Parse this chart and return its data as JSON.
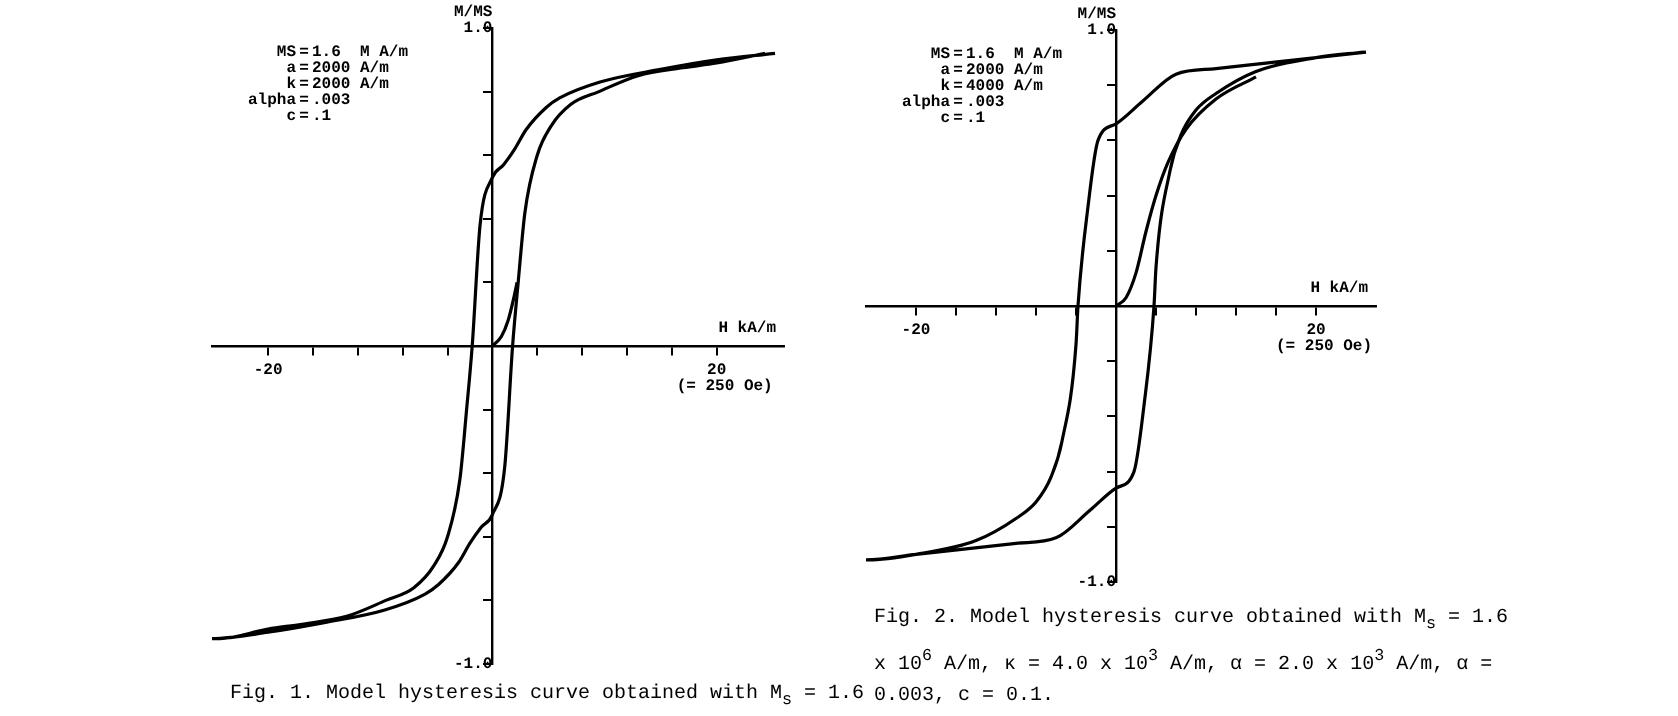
{
  "chart_data": [
    {
      "type": "line",
      "title": "Fig. 1.  Model hysteresis curve obtained with M$_{s}$ = 1.6",
      "xlabel": "H kA/m",
      "ylabel": "M/MS",
      "annotations": [
        "MS = 1.6  M A/m",
        "a = 2000 A/m",
        "k = 2000 A/m",
        "alpha = .003",
        "c = .1",
        "(= 250 Oe)"
      ],
      "xlim": [
        -25,
        26
      ],
      "ylim": [
        -1.0,
        1.0
      ],
      "xticks": [
        {
          "value": -20,
          "label": "-20"
        },
        {
          "value": -16,
          "label": null
        },
        {
          "value": -12,
          "label": null
        },
        {
          "value": -8,
          "label": null
        },
        {
          "value": -4,
          "label": null
        },
        {
          "value": 0,
          "label": null
        },
        {
          "value": 4,
          "label": null
        },
        {
          "value": 8,
          "label": null
        },
        {
          "value": 12,
          "label": null
        },
        {
          "value": 16,
          "label": null
        },
        {
          "value": 20,
          "label": "20"
        }
      ],
      "yticks": [
        {
          "value": -1.0,
          "label": "-1.0"
        },
        {
          "value": -0.8,
          "label": null
        },
        {
          "value": -0.6,
          "label": null
        },
        {
          "value": -0.4,
          "label": null
        },
        {
          "value": -0.2,
          "label": null
        },
        {
          "value": 0,
          "label": null
        },
        {
          "value": 0.2,
          "label": null
        },
        {
          "value": 0.4,
          "label": null
        },
        {
          "value": 0.6,
          "label": null
        },
        {
          "value": 0.8,
          "label": null
        },
        {
          "value": 1.0,
          "label": "1.0"
        }
      ],
      "grid": false,
      "legend": false,
      "marker": "none",
      "line_style": "solid",
      "series": [
        {
          "color": "#000000",
          "x": [
            25.2,
            20,
            15,
            9.6,
            6,
            4.8,
            3,
            2,
            1,
            0,
            -1.1,
            -1.8,
            -2.3,
            -2.9,
            -4,
            -5.2,
            -7,
            -9.5,
            -13,
            -17,
            -20,
            -24.3,
            -25,
            -20,
            -15,
            -9.6,
            -6,
            -4.8,
            -3,
            -2,
            -1,
            0,
            1.1,
            1.8,
            2.3,
            2.9,
            4,
            5.2,
            7,
            9.5,
            13,
            17,
            20,
            24.3
          ],
          "values": [
            0.92,
            0.9,
            0.87,
            0.83,
            0.78,
            0.75,
            0.68,
            0.62,
            0.57,
            0.53,
            0.38,
            0,
            -0.2,
            -0.42,
            -0.6,
            -0.69,
            -0.76,
            -0.8,
            -0.85,
            -0.875,
            -0.89,
            -0.92,
            -0.92,
            -0.9,
            -0.87,
            -0.83,
            -0.78,
            -0.75,
            -0.68,
            -0.62,
            -0.57,
            -0.53,
            -0.38,
            0,
            0.2,
            0.42,
            0.6,
            0.69,
            0.76,
            0.8,
            0.85,
            0.875,
            0.89,
            0.92
          ]
        },
        {
          "color": "#000000",
          "x": [
            0,
            0.8,
            1.4,
            1.9,
            2.2
          ],
          "values": [
            0,
            0.03,
            0.08,
            0.15,
            0.2
          ]
        }
      ]
    },
    {
      "type": "line",
      "title": "Fig. 2.  Model hysteresis curve obtained with M$_{s}$ = 1.6 x 10$^{6}$ A/m, κ = 4.0 x 10$^{3}$ A/m, α = 2.0 x 10$^{3}$ A/m, α = 0.003, c = 0.1.",
      "xlabel": "H kA/m",
      "ylabel": "M/MS",
      "annotations": [
        "MS = 1.6  M A/m",
        "a = 2000 A/m",
        "k = 4000 A/m",
        "alpha = .003",
        "c = .1",
        "(= 250 Oe)"
      ],
      "xlim": [
        -25,
        26
      ],
      "ylim": [
        -1.0,
        1.0
      ],
      "xticks": [
        {
          "value": -20,
          "label": "-20"
        },
        {
          "value": -16,
          "label": null
        },
        {
          "value": -12,
          "label": null
        },
        {
          "value": -8,
          "label": null
        },
        {
          "value": -4,
          "label": null
        },
        {
          "value": 0,
          "label": null
        },
        {
          "value": 4,
          "label": null
        },
        {
          "value": 8,
          "label": null
        },
        {
          "value": 12,
          "label": null
        },
        {
          "value": 16,
          "label": null
        },
        {
          "value": 20,
          "label": "20"
        }
      ],
      "yticks": [
        {
          "value": -1.0,
          "label": "-1.0"
        },
        {
          "value": -0.8,
          "label": null
        },
        {
          "value": -0.6,
          "label": null
        },
        {
          "value": -0.4,
          "label": null
        },
        {
          "value": -0.2,
          "label": null
        },
        {
          "value": 0,
          "label": null
        },
        {
          "value": 0.2,
          "label": null
        },
        {
          "value": 0.4,
          "label": null
        },
        {
          "value": 0.6,
          "label": null
        },
        {
          "value": 0.8,
          "label": null
        },
        {
          "value": 1.0,
          "label": "1.0"
        }
      ],
      "grid": false,
      "legend": false,
      "marker": "none",
      "line_style": "solid",
      "series": [
        {
          "color": "#000000",
          "x": [
            25,
            20,
            15,
            10,
            6,
            2.6,
            0,
            -1.8,
            -2.8,
            -3.8,
            -4,
            -5.4,
            -6.5,
            -8,
            -10,
            -14,
            -20,
            -24.8,
            -25,
            -20,
            -15,
            -10,
            -6,
            -2.6,
            0,
            1.8,
            2.8,
            3.8,
            4,
            5.4,
            6.5,
            8,
            10,
            14,
            20,
            24.8
          ],
          "values": [
            0.92,
            0.9,
            0.88,
            0.86,
            0.84,
            0.74,
            0.66,
            0.6,
            0.36,
            0,
            -0.14,
            -0.49,
            -0.62,
            -0.71,
            -0.77,
            -0.85,
            -0.9,
            -0.92,
            -0.92,
            -0.9,
            -0.88,
            -0.86,
            -0.84,
            -0.74,
            -0.66,
            -0.6,
            -0.36,
            0,
            0.14,
            0.49,
            0.62,
            0.71,
            0.77,
            0.85,
            0.9,
            0.92
          ]
        },
        {
          "color": "#000000",
          "x": [
            0,
            1,
            2,
            3,
            4,
            5.2,
            7,
            10,
            14
          ],
          "values": [
            0,
            0.03,
            0.12,
            0.27,
            0.4,
            0.52,
            0.64,
            0.75,
            0.83
          ]
        }
      ]
    }
  ]
}
